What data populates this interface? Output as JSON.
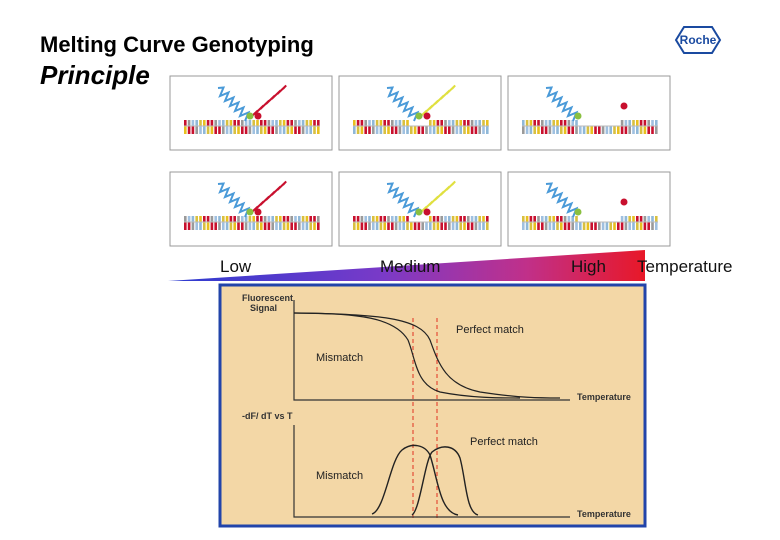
{
  "header": {
    "title": "Melting Curve Genotyping",
    "subtitle": "Principle",
    "logo": "Roche"
  },
  "scale": {
    "low": "Low",
    "medium": "Medium",
    "high": "High",
    "axis": "Temperature"
  },
  "diagram": {
    "upper": {
      "y_label": [
        "Fluorescent",
        "Signal"
      ],
      "curve_1": "Perfect match",
      "curve_2": "Mismatch",
      "x_label": "Temperature"
    },
    "lower": {
      "y_label": "-dF/ dT vs T",
      "curve_1": "Perfect match",
      "curve_2": "Mismatch",
      "x_label": "Temperature"
    }
  }
}
